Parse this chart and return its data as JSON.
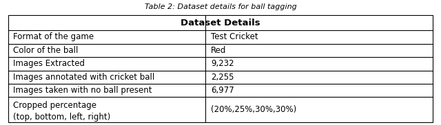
{
  "title": "Table 2: Dataset details for ball tagging",
  "header": "Dataset Details",
  "rows": [
    [
      "Format of the game",
      "Test Cricket"
    ],
    [
      "Color of the ball",
      "Red"
    ],
    [
      "Images Extracted",
      "9,232"
    ],
    [
      "Images annotated with cricket ball",
      "2,255"
    ],
    [
      "Images taken with no ball present",
      "6,977"
    ],
    [
      "Cropped percentage\n(top, bottom, left, right)",
      "(20%,25%,30%,30%)"
    ]
  ],
  "col_split": 0.465,
  "border_color": "#000000",
  "text_color": "#000000",
  "header_fontsize": 9.5,
  "row_fontsize": 8.5,
  "title_fontsize": 8
}
